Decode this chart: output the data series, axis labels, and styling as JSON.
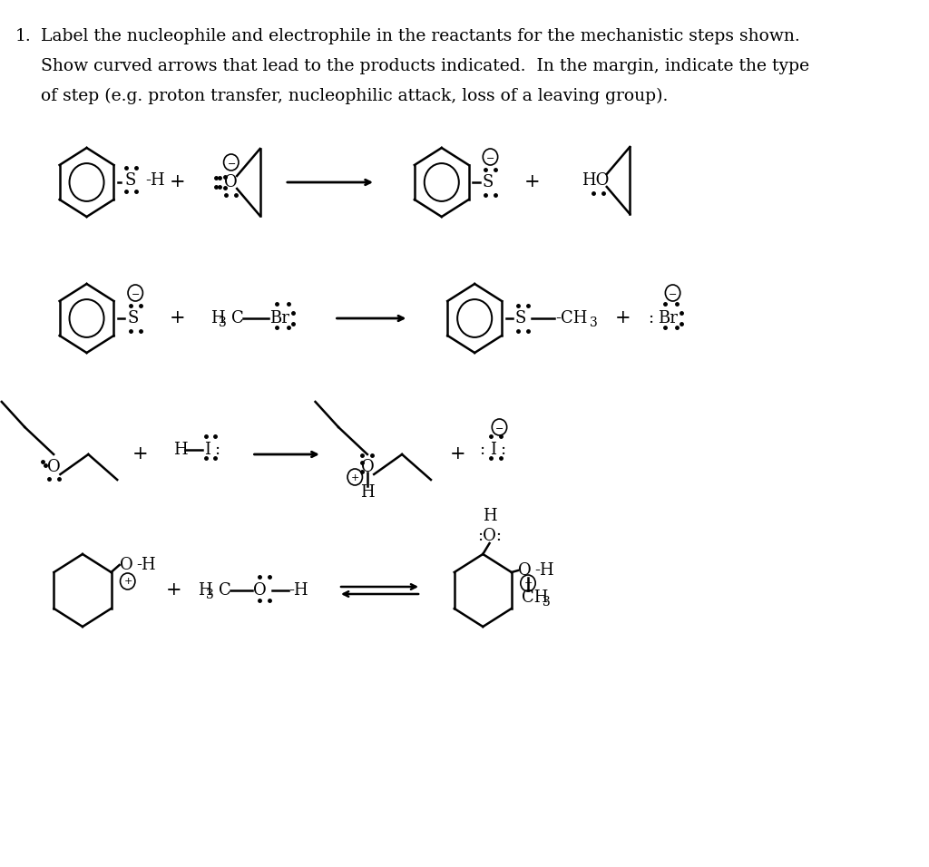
{
  "title_number": "1.",
  "title_text_line1": "Label the nucleophile and electrophile in the reactants for the mechanistic steps shown.",
  "title_text_line2": "Show curved arrows that lead to the products indicated.  In the margin, indicate the type",
  "title_text_line3": "of step (e.g. proton transfer, nucleophilic attack, loss of a leaving group).",
  "background_color": "#ffffff",
  "text_color": "#000000",
  "font_size_title": 13.5,
  "font_size_chem": 13,
  "line_width": 1.8
}
